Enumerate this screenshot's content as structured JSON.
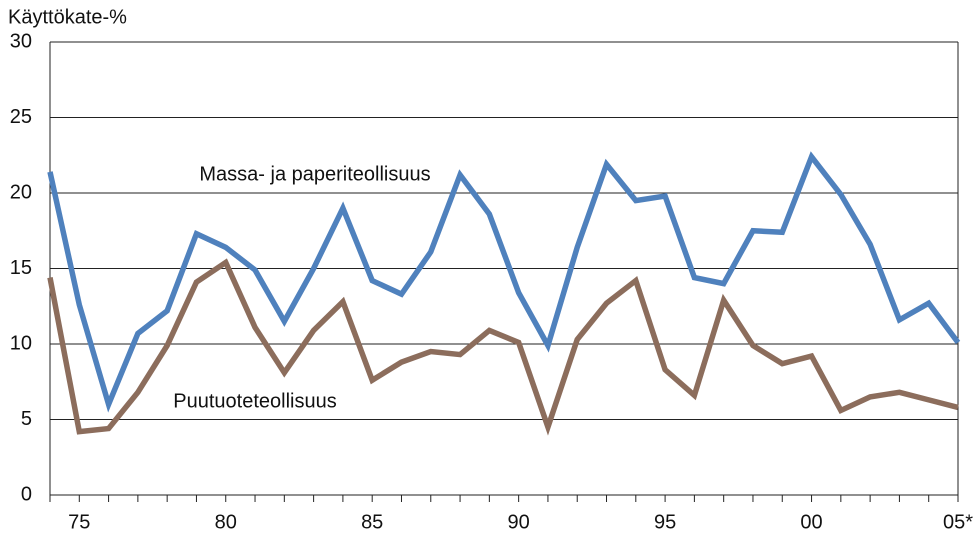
{
  "chart_data": {
    "type": "line",
    "y_label": "Käyttökate-%",
    "categories": [
      null,
      "75",
      null,
      null,
      null,
      null,
      "80",
      null,
      null,
      null,
      null,
      "85",
      null,
      null,
      null,
      null,
      "90",
      null,
      null,
      null,
      null,
      "95",
      null,
      null,
      null,
      null,
      "00",
      null,
      null,
      null,
      null,
      "05*"
    ],
    "series": [
      {
        "name": "Massa- ja paperiteollisuus",
        "color": "#4f81bd",
        "values": [
          21.4,
          12.6,
          6.0,
          10.7,
          12.2,
          17.3,
          16.4,
          14.9,
          11.5,
          15.0,
          19.0,
          14.2,
          13.3,
          16.1,
          21.2,
          18.6,
          13.4,
          9.9,
          16.4,
          21.9,
          19.5,
          19.8,
          14.4,
          14.0,
          17.5,
          17.4,
          22.4,
          19.9,
          16.6,
          11.6,
          12.7,
          10.1
        ]
      },
      {
        "name": "Puutuoteteollisuus",
        "color": "#8c6d5c",
        "values": [
          14.4,
          4.2,
          4.4,
          6.8,
          9.9,
          14.1,
          15.4,
          11.1,
          8.1,
          10.9,
          12.8,
          7.6,
          8.8,
          9.5,
          9.3,
          10.9,
          10.1,
          4.5,
          10.3,
          12.7,
          14.2,
          8.3,
          6.6,
          12.9,
          9.9,
          8.7,
          9.2,
          5.6,
          6.5,
          6.8,
          6.3,
          5.8
        ]
      }
    ],
    "ylim": [
      0,
      30
    ],
    "yticks": [
      0,
      5,
      10,
      15,
      20,
      25,
      30
    ],
    "grid": true
  }
}
